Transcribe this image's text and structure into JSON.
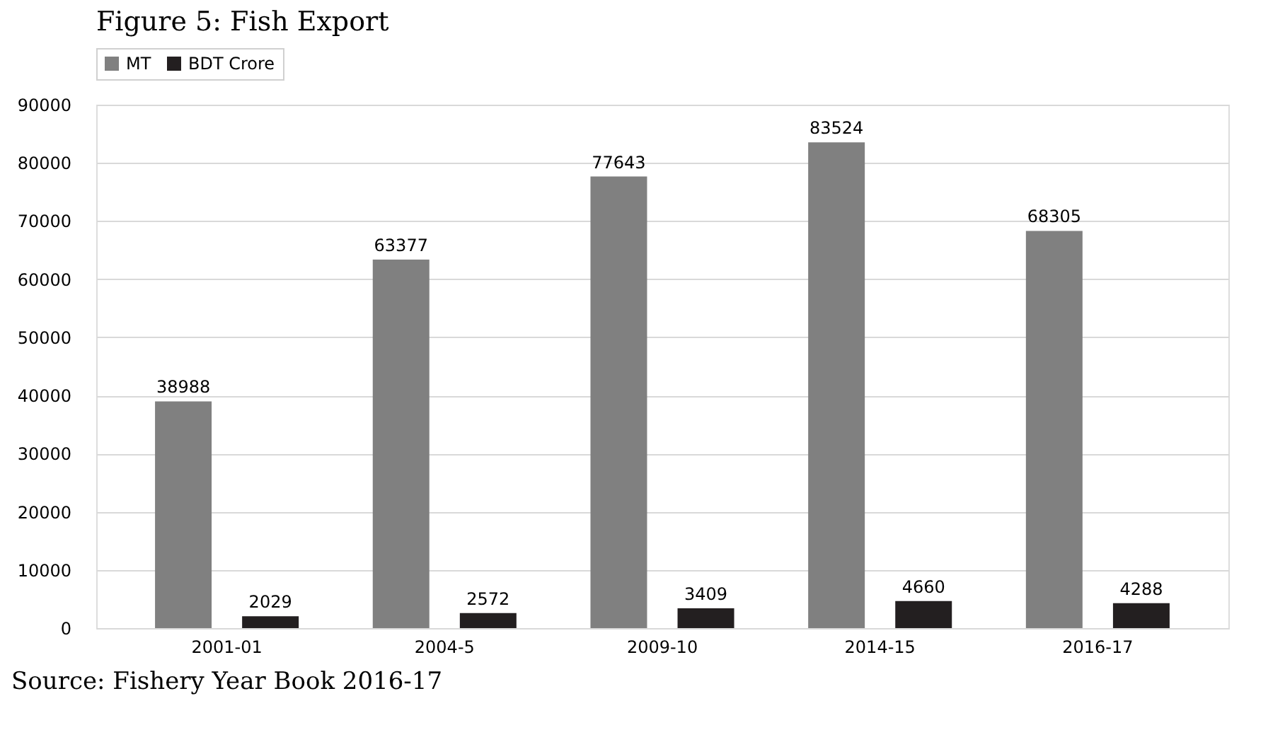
{
  "chart_data": {
    "type": "bar",
    "title": "Figure 5: Fish Export",
    "categories": [
      "2001-01",
      "2004-5",
      "2009-10",
      "2014-15",
      "2016-17"
    ],
    "series": [
      {
        "name": "MT",
        "color": "#808080",
        "values": [
          38988,
          63377,
          77643,
          83524,
          68305
        ]
      },
      {
        "name": "BDT Crore",
        "color": "#231f20",
        "values": [
          2029,
          2572,
          3409,
          4660,
          4288
        ]
      }
    ],
    "ylim": [
      0,
      90000
    ],
    "yticks": [
      0,
      10000,
      20000,
      30000,
      40000,
      50000,
      60000,
      70000,
      80000,
      90000
    ],
    "grid": "y",
    "legend": "top",
    "data_labels": true,
    "annotations": [
      "Source: Fishery Year Book 2016-17"
    ]
  }
}
